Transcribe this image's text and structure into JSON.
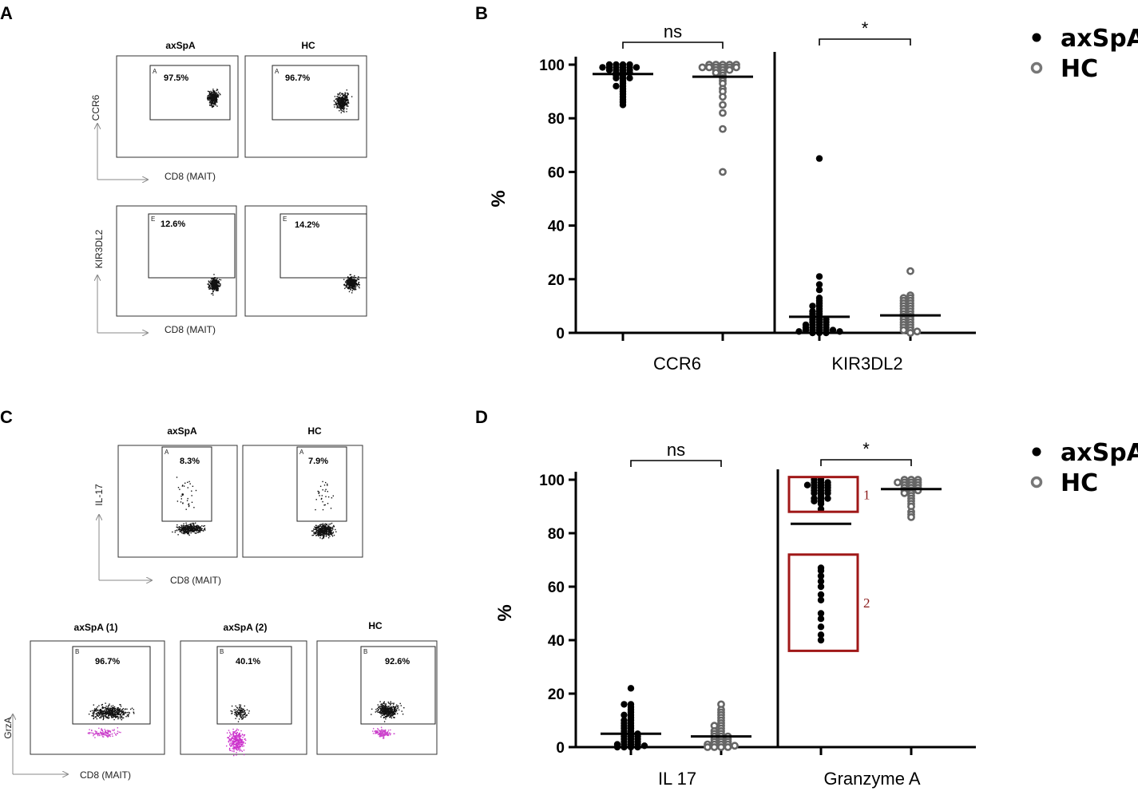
{
  "panels": {
    "A": {
      "letter": "A",
      "rows": [
        {
          "ylabel": "CCR6",
          "xlabel": "CD8 (MAIT)",
          "gate": "A",
          "plots": [
            {
              "title": "axSpA",
              "pct": "97.5%"
            },
            {
              "title": "HC",
              "pct": "96.7%"
            }
          ]
        },
        {
          "ylabel": "KIR3DL2",
          "xlabel": "CD8 (MAIT)",
          "gate": "E",
          "plots": [
            {
              "title": "",
              "pct": "12.6%"
            },
            {
              "title": "",
              "pct": "14.2%"
            }
          ]
        }
      ]
    },
    "C": {
      "letter": "C",
      "rows": [
        {
          "ylabel": "IL-17",
          "xlabel": "CD8 (MAIT)",
          "gate": "A",
          "plots": [
            {
              "title": "axSpA",
              "pct": "8.3%"
            },
            {
              "title": "HC",
              "pct": "7.9%"
            }
          ]
        },
        {
          "ylabel": "GrzA",
          "xlabel": "CD8 (MAIT)",
          "gate": "B",
          "plots": [
            {
              "title": "axSpA (1)",
              "pct": "96.7%"
            },
            {
              "title": "axSpA (2)",
              "pct": "40.1%"
            },
            {
              "title": "HC",
              "pct": "92.6%"
            }
          ]
        }
      ]
    }
  },
  "chart_data": [
    {
      "panel": "B",
      "type": "scatter",
      "title": "",
      "ylabel": "%",
      "ylim": [
        0,
        100
      ],
      "yticks": [
        0,
        20,
        40,
        60,
        80,
        100
      ],
      "categories": [
        "CCR6",
        "KIR3DL2"
      ],
      "legend": [
        {
          "name": "axSpA",
          "marker": "filled"
        },
        {
          "name": "HC",
          "marker": "open"
        }
      ],
      "legend_position": "top-right",
      "groups": [
        {
          "category": "CCR6",
          "series": "axSpA",
          "mean": 96.5,
          "values": [
            100,
            100,
            100,
            100,
            99,
            99,
            99,
            99,
            99,
            99,
            98,
            98,
            98,
            98,
            97,
            97,
            97,
            96,
            96,
            95,
            95,
            95,
            94,
            93,
            92,
            92,
            91,
            90,
            89,
            88,
            87,
            86,
            85
          ]
        },
        {
          "category": "CCR6",
          "series": "HC",
          "mean": 95.5,
          "values": [
            100,
            100,
            100,
            100,
            100,
            99,
            99,
            99,
            99,
            99,
            99,
            98,
            98,
            98,
            97,
            97,
            96,
            95,
            94,
            93,
            91,
            90,
            88,
            85,
            82,
            76,
            60
          ]
        },
        {
          "category": "KIR3DL2",
          "series": "axSpA",
          "mean": 6,
          "values": [
            65,
            21,
            18,
            16,
            13,
            12,
            11,
            10,
            10,
            9,
            8,
            8,
            7,
            7,
            6,
            6,
            5,
            5,
            5,
            4,
            4,
            4,
            3,
            3,
            3,
            3,
            2,
            2,
            2,
            2,
            1,
            1,
            1,
            1,
            1,
            0.5,
            0.5,
            0,
            0,
            0
          ]
        },
        {
          "category": "KIR3DL2",
          "series": "HC",
          "mean": 6.5,
          "values": [
            23,
            14,
            13,
            13,
            12,
            12,
            11,
            11,
            10,
            10,
            9,
            9,
            8,
            8,
            7,
            7,
            6,
            6,
            5,
            5,
            4,
            4,
            3,
            3,
            2,
            2,
            1,
            1,
            0.5,
            0
          ]
        }
      ],
      "comparisons": [
        {
          "category": "CCR6",
          "label": "ns"
        },
        {
          "category": "KIR3DL2",
          "label": "*"
        }
      ]
    },
    {
      "panel": "D",
      "type": "scatter",
      "title": "",
      "ylabel": "%",
      "ylim": [
        0,
        100
      ],
      "yticks": [
        0,
        20,
        40,
        60,
        80,
        100
      ],
      "categories": [
        "IL 17",
        "Granzyme A"
      ],
      "legend": [
        {
          "name": "axSpA",
          "marker": "filled"
        },
        {
          "name": "HC",
          "marker": "open"
        }
      ],
      "legend_position": "top-right",
      "groups": [
        {
          "category": "IL 17",
          "series": "axSpA",
          "mean": 5,
          "values": [
            22,
            16,
            16,
            15,
            14,
            13,
            12,
            12,
            11,
            10,
            10,
            9,
            9,
            8,
            8,
            7,
            7,
            6,
            6,
            5,
            5,
            5,
            4,
            4,
            4,
            3,
            3,
            3,
            2,
            2,
            2,
            1,
            1,
            1,
            1,
            0.5,
            0,
            0,
            0,
            0
          ]
        },
        {
          "category": "IL 17",
          "series": "HC",
          "mean": 4,
          "values": [
            16,
            14,
            13,
            12,
            11,
            10,
            9,
            8,
            8,
            7,
            6,
            6,
            5,
            5,
            4,
            4,
            4,
            3,
            3,
            3,
            2,
            2,
            2,
            1,
            1,
            1,
            1,
            0.5,
            0,
            0,
            0,
            0
          ]
        },
        {
          "category": "Granzyme A",
          "series": "axSpA",
          "mean": 83.5,
          "values": [
            100,
            100,
            99,
            99,
            99,
            98,
            98,
            98,
            98,
            97,
            97,
            97,
            96,
            96,
            96,
            95,
            95,
            95,
            94,
            93,
            93,
            93,
            92,
            92,
            91,
            89,
            67,
            66,
            64,
            62,
            60,
            57,
            55,
            50,
            48,
            45,
            42,
            40
          ]
        },
        {
          "category": "Granzyme A",
          "series": "HC",
          "mean": 96.5,
          "values": [
            100,
            100,
            100,
            99,
            99,
            99,
            99,
            98,
            98,
            98,
            97,
            97,
            97,
            96,
            96,
            96,
            95,
            95,
            94,
            93,
            92,
            91,
            90,
            88,
            87,
            86
          ]
        }
      ],
      "comparisons": [
        {
          "category": "IL 17",
          "label": "ns"
        },
        {
          "category": "Granzyme A",
          "label": "*"
        }
      ],
      "annotations": [
        {
          "label": "1",
          "range": [
            88,
            101
          ]
        },
        {
          "label": "2",
          "range": [
            36,
            72
          ]
        }
      ]
    }
  ]
}
